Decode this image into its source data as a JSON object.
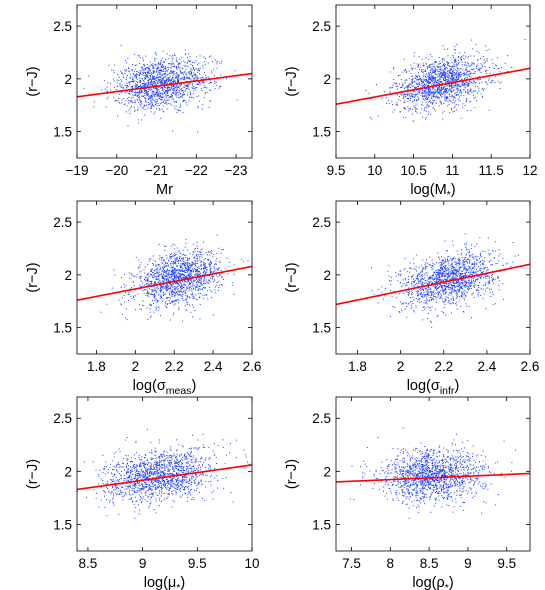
{
  "chart_data": [
    {
      "type": "scatter",
      "xlabel": "Mr",
      "ylabel": "(r−J)",
      "xlim": [
        -19,
        -23.4
      ],
      "ylim": [
        1.25,
        2.7
      ],
      "x_ticks": [
        -19,
        -20,
        -21,
        -22,
        -23
      ],
      "x_tick_labels": [
        "−19",
        "−20",
        "−21",
        "−22",
        "−23"
      ],
      "y_ticks": [
        1.5,
        2,
        2.5
      ],
      "y_tick_labels": [
        "1.5",
        "2",
        "2.5"
      ],
      "fit_line": {
        "x": [
          -19,
          -23.4
        ],
        "y": [
          1.83,
          2.05
        ]
      },
      "point_cloud": {
        "x_center": -21.1,
        "x_spread": 0.6,
        "y_spread": 0.12
      }
    },
    {
      "type": "scatter",
      "xlabel": "log(M*)",
      "ylabel": "(r−J)",
      "xlim": [
        9.5,
        12
      ],
      "ylim": [
        1.25,
        2.7
      ],
      "x_ticks": [
        9.5,
        10,
        10.5,
        11,
        11.5,
        12
      ],
      "x_tick_labels": [
        "9.5",
        "10",
        "10.5",
        "11",
        "11.5",
        "12"
      ],
      "y_ticks": [
        1.5,
        2,
        2.5
      ],
      "y_tick_labels": [
        "1.5",
        "2",
        "2.5"
      ],
      "fit_line": {
        "x": [
          9.5,
          12
        ],
        "y": [
          1.76,
          2.1
        ]
      },
      "point_cloud": {
        "x_center": 10.85,
        "x_spread": 0.3,
        "y_spread": 0.12
      }
    },
    {
      "type": "scatter",
      "xlabel": "log(σmeas)",
      "ylabel": "(r−J)",
      "xlim": [
        1.7,
        2.6
      ],
      "ylim": [
        1.25,
        2.7
      ],
      "x_ticks": [
        1.8,
        2,
        2.2,
        2.4,
        2.6
      ],
      "x_tick_labels": [
        "1.8",
        "2",
        "2.2",
        "2.4",
        "2.6"
      ],
      "y_ticks": [
        1.5,
        2,
        2.5
      ],
      "y_tick_labels": [
        "1.5",
        "2",
        "2.5"
      ],
      "fit_line": {
        "x": [
          1.7,
          2.6
        ],
        "y": [
          1.76,
          2.08
        ]
      },
      "point_cloud": {
        "x_center": 2.22,
        "x_spread": 0.11,
        "y_spread": 0.12
      }
    },
    {
      "type": "scatter",
      "xlabel": "log(σinfr)",
      "ylabel": "(r−J)",
      "xlim": [
        1.7,
        2.6
      ],
      "ylim": [
        1.25,
        2.7
      ],
      "x_ticks": [
        1.8,
        2,
        2.2,
        2.4,
        2.6
      ],
      "x_tick_labels": [
        "1.8",
        "2",
        "2.2",
        "2.4",
        "2.6"
      ],
      "y_ticks": [
        1.5,
        2,
        2.5
      ],
      "y_tick_labels": [
        "1.5",
        "2",
        "2.5"
      ],
      "fit_line": {
        "x": [
          1.7,
          2.6
        ],
        "y": [
          1.72,
          2.1
        ]
      },
      "point_cloud": {
        "x_center": 2.22,
        "x_spread": 0.11,
        "y_spread": 0.12
      }
    },
    {
      "type": "scatter",
      "xlabel": "log(μ*)",
      "ylabel": "(r−J)",
      "xlim": [
        8.4,
        10
      ],
      "ylim": [
        1.25,
        2.7
      ],
      "x_ticks": [
        8.5,
        9,
        9.5,
        10
      ],
      "x_tick_labels": [
        "8.5",
        "9",
        "9.5",
        "10"
      ],
      "y_ticks": [
        1.5,
        2,
        2.5
      ],
      "y_tick_labels": [
        "1.5",
        "2",
        "2.5"
      ],
      "fit_line": {
        "x": [
          8.4,
          10
        ],
        "y": [
          1.83,
          2.06
        ]
      },
      "point_cloud": {
        "x_center": 9.15,
        "x_spread": 0.25,
        "y_spread": 0.12
      }
    },
    {
      "type": "scatter",
      "xlabel": "log(ρ*)",
      "ylabel": "(r−J)",
      "xlim": [
        7.3,
        9.8
      ],
      "ylim": [
        1.25,
        2.7
      ],
      "x_ticks": [
        7.5,
        8,
        8.5,
        9,
        9.5
      ],
      "x_tick_labels": [
        "7.5",
        "8",
        "8.5",
        "9",
        "9.5"
      ],
      "y_ticks": [
        1.5,
        2,
        2.5
      ],
      "y_tick_labels": [
        "1.5",
        "2",
        "2.5"
      ],
      "fit_line": {
        "x": [
          7.3,
          9.8
        ],
        "y": [
          1.9,
          1.98
        ]
      },
      "point_cloud": {
        "x_center": 8.55,
        "x_spread": 0.33,
        "y_spread": 0.12
      }
    }
  ],
  "colors": {
    "points": "#1f3fff",
    "fit": "#ff0000",
    "axes": "#000000"
  }
}
